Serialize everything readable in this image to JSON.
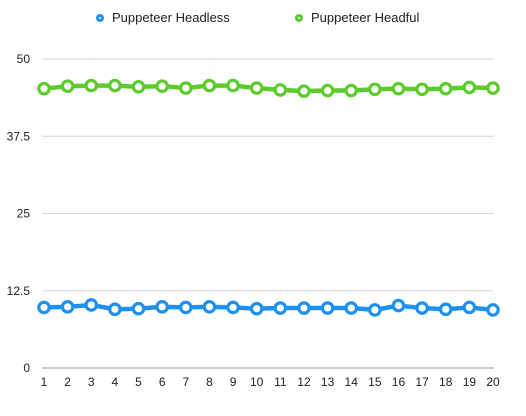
{
  "chart_data": {
    "type": "line",
    "categories": [
      "1",
      "2",
      "3",
      "4",
      "5",
      "6",
      "7",
      "8",
      "9",
      "10",
      "11",
      "12",
      "13",
      "14",
      "15",
      "16",
      "17",
      "18",
      "19",
      "20"
    ],
    "series": [
      {
        "name": "Puppeteer Headless",
        "color": "#1e90f0",
        "values": [
          9.8,
          9.9,
          10.2,
          9.5,
          9.6,
          9.9,
          9.8,
          9.9,
          9.8,
          9.6,
          9.7,
          9.7,
          9.7,
          9.7,
          9.4,
          10.1,
          9.7,
          9.5,
          9.8,
          9.4
        ]
      },
      {
        "name": "Puppeteer Headful",
        "color": "#5ccc2c",
        "values": [
          45.2,
          45.6,
          45.7,
          45.7,
          45.5,
          45.6,
          45.3,
          45.7,
          45.7,
          45.3,
          45.0,
          44.8,
          44.9,
          44.9,
          45.1,
          45.2,
          45.1,
          45.2,
          45.4,
          45.3
        ]
      }
    ],
    "y_ticks": [
      "0",
      "12.5",
      "25",
      "37.5",
      "50"
    ],
    "ylim": [
      0,
      50
    ],
    "grid": true,
    "legend": "top-center"
  }
}
